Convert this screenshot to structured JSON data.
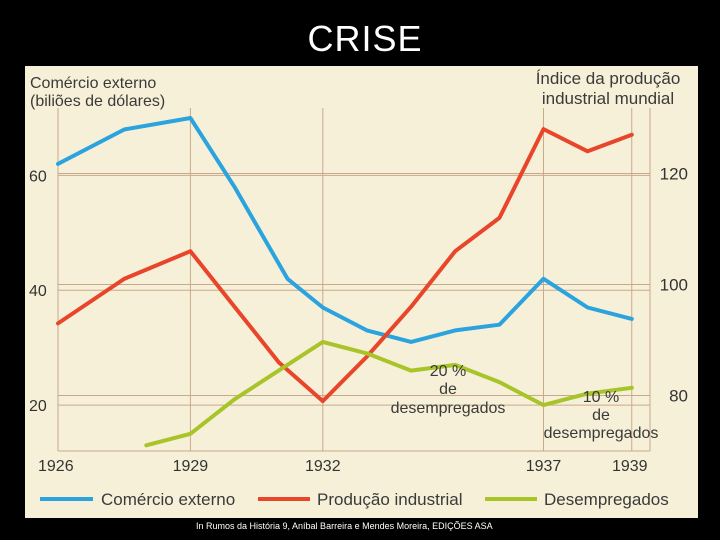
{
  "slide": {
    "title": "CRISE",
    "credit": "In Rumos da História 9, Aníbal Barreira e Mendes Moreira, EDIÇÕES ASA"
  },
  "colors": {
    "background": "#000000",
    "panel": "#f7f0d8",
    "grid": "#c9a98c",
    "comercio": "#2aa3df",
    "producao": "#e8452a",
    "desempregados": "#a8c428",
    "text": "#333333"
  },
  "chart_data": {
    "type": "line",
    "title": "",
    "left_axis": {
      "label_line1": "Comércio externo",
      "label_line2": "(biliões de dólares)",
      "ticks": [
        "20",
        "40",
        "60"
      ],
      "tick_values": [
        20,
        40,
        60
      ],
      "range": [
        12,
        70
      ]
    },
    "right_axis": {
      "label_line1": "Índice da produção",
      "label_line2": "industrial mundial",
      "ticks": [
        "80",
        "100",
        "120"
      ],
      "tick_values": [
        80,
        100,
        120
      ],
      "range": [
        70,
        130
      ]
    },
    "x_axis": {
      "ticks": [
        "1926",
        "1929",
        "1932",
        "1937",
        "1939"
      ],
      "tick_values": [
        1926,
        1929,
        1932,
        1937,
        1939
      ],
      "range": [
        1926,
        1939.3
      ]
    },
    "grid": true,
    "legend_position": "bottom",
    "series": [
      {
        "name": "Comércio externo",
        "axis": "left",
        "x": [
          1926,
          1927.5,
          1929,
          1930,
          1931.2,
          1932,
          1933,
          1934,
          1935,
          1936,
          1937,
          1938,
          1939
        ],
        "values": [
          62,
          68,
          70,
          58,
          42,
          37,
          33,
          31,
          33,
          34,
          42,
          37,
          35
        ]
      },
      {
        "name": "Produção industrial",
        "axis": "right",
        "x": [
          1926,
          1927.5,
          1929,
          1930,
          1931,
          1932,
          1933,
          1934,
          1935,
          1936,
          1937,
          1938,
          1939
        ],
        "values": [
          93,
          101,
          106,
          96,
          86,
          79,
          87,
          96,
          106,
          112,
          128,
          124,
          127
        ]
      },
      {
        "name": "Desempregados",
        "axis": "left",
        "x": [
          1928,
          1929,
          1930,
          1931,
          1932,
          1933,
          1934,
          1935,
          1936,
          1937,
          1938,
          1939
        ],
        "values": [
          13,
          15,
          21,
          26,
          31,
          29,
          26,
          27,
          24,
          20,
          22,
          23
        ]
      }
    ],
    "annotations": [
      {
        "line1": "20 %",
        "line2": "de",
        "line3": "desempregados"
      },
      {
        "line1": "10 %",
        "line2": "de",
        "line3": "desempregados"
      }
    ]
  }
}
